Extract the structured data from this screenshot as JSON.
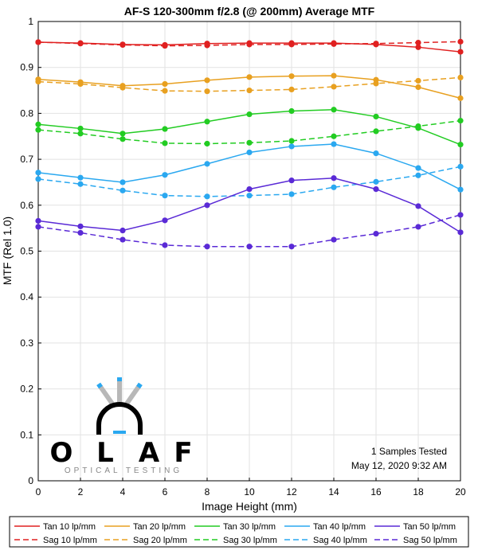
{
  "chart_data": {
    "type": "line",
    "title": "AF-S 120-300mm f/2.8 (@ 200mm) Average MTF",
    "xlabel": "Image Height (mm)",
    "ylabel": "MTF (Rel 1.0)",
    "xlim": [
      0,
      20
    ],
    "ylim": [
      0,
      1
    ],
    "xticks": [
      "0",
      "2",
      "4",
      "6",
      "8",
      "10",
      "12",
      "14",
      "16",
      "18",
      "20"
    ],
    "yticks": [
      "0",
      "0.1",
      "0.2",
      "0.3",
      "0.4",
      "0.5",
      "0.6",
      "0.7",
      "0.8",
      "0.9",
      "1"
    ],
    "grid": true,
    "legend_position": "bottom",
    "x": [
      0,
      2,
      4,
      6,
      8,
      10,
      12,
      14,
      16,
      18,
      20
    ],
    "series": [
      {
        "name": "Tan 10 lp/mm",
        "color": "#e02020",
        "dash": false,
        "values": [
          0.955,
          0.953,
          0.95,
          0.949,
          0.952,
          0.953,
          0.953,
          0.953,
          0.95,
          0.944,
          0.934
        ]
      },
      {
        "name": "Sag 10 lp/mm",
        "color": "#e02020",
        "dash": true,
        "values": [
          0.955,
          0.952,
          0.949,
          0.947,
          0.948,
          0.95,
          0.95,
          0.951,
          0.952,
          0.954,
          0.956
        ]
      },
      {
        "name": "Tan 20 lp/mm",
        "color": "#e8a020",
        "dash": false,
        "values": [
          0.874,
          0.868,
          0.86,
          0.864,
          0.872,
          0.879,
          0.881,
          0.882,
          0.873,
          0.857,
          0.833
        ]
      },
      {
        "name": "Sag 20 lp/mm",
        "color": "#e8a020",
        "dash": true,
        "values": [
          0.869,
          0.864,
          0.856,
          0.849,
          0.848,
          0.85,
          0.852,
          0.858,
          0.865,
          0.871,
          0.878
        ]
      },
      {
        "name": "Tan 30 lp/mm",
        "color": "#22cc22",
        "dash": false,
        "values": [
          0.776,
          0.767,
          0.756,
          0.766,
          0.782,
          0.798,
          0.805,
          0.808,
          0.793,
          0.768,
          0.732
        ]
      },
      {
        "name": "Sag 30 lp/mm",
        "color": "#22cc22",
        "dash": true,
        "values": [
          0.764,
          0.756,
          0.744,
          0.735,
          0.734,
          0.736,
          0.74,
          0.75,
          0.761,
          0.772,
          0.784
        ]
      },
      {
        "name": "Tan 40 lp/mm",
        "color": "#2aa8f0",
        "dash": false,
        "values": [
          0.671,
          0.66,
          0.65,
          0.666,
          0.69,
          0.715,
          0.728,
          0.733,
          0.713,
          0.681,
          0.634
        ]
      },
      {
        "name": "Sag 40 lp/mm",
        "color": "#2aa8f0",
        "dash": true,
        "values": [
          0.657,
          0.646,
          0.632,
          0.621,
          0.619,
          0.621,
          0.624,
          0.639,
          0.651,
          0.665,
          0.684
        ]
      },
      {
        "name": "Tan 50 lp/mm",
        "color": "#5a2ad6",
        "dash": false,
        "values": [
          0.566,
          0.554,
          0.545,
          0.567,
          0.6,
          0.635,
          0.654,
          0.659,
          0.635,
          0.598,
          0.541
        ]
      },
      {
        "name": "Sag 50 lp/mm",
        "color": "#5a2ad6",
        "dash": true,
        "values": [
          0.553,
          0.54,
          0.525,
          0.513,
          0.51,
          0.51,
          0.51,
          0.525,
          0.538,
          0.553,
          0.579
        ]
      }
    ],
    "annotations": [
      "1 Samples Tested",
      "May 12, 2020  9:32 AM"
    ]
  },
  "logo": {
    "letters": [
      "O",
      "L",
      "A",
      "F"
    ],
    "subtitle": "OPTICAL TESTING"
  }
}
